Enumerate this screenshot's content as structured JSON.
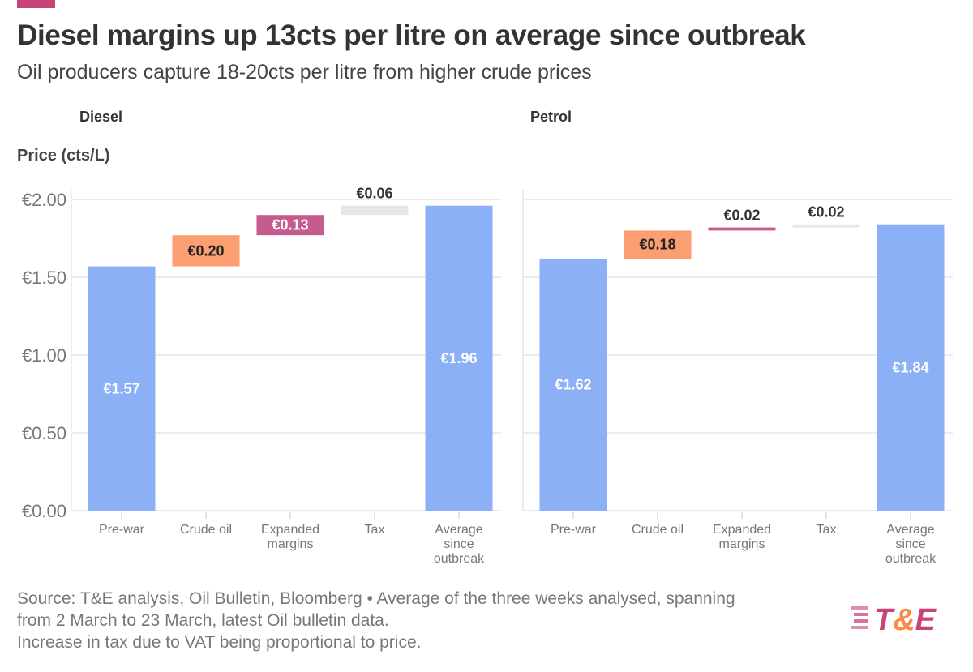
{
  "title": "Diesel margins up 13cts per litre on average since outbreak",
  "subtitle": "Oil producers capture 18-20cts per litre from higher crude prices",
  "ylabel": "Price (cts/L)",
  "source": [
    "Source: T&E analysis, Oil Bulletin, Bloomberg • Average of the three weeks analysed, spanning",
    "from 2 March to 23 March, latest Oil bulletin data.",
    "Increase in tax due to VAT being proportional to price."
  ],
  "logo_text": "T&E",
  "colors": {
    "total": "#8cb0f5",
    "crude": "#fb9f72",
    "margins": "#c65b8e",
    "tax": "#e6e6e6",
    "accent": "#c8437a"
  },
  "chart_data": [
    {
      "type": "waterfall",
      "title": "Diesel",
      "ylabel": "Price (cts/L)",
      "ylim": [
        0,
        2.0
      ],
      "yticks": [
        "€0.00",
        "€0.50",
        "€1.00",
        "€1.50",
        "€2.00"
      ],
      "ytick_values": [
        0,
        0.5,
        1.0,
        1.5,
        2.0
      ],
      "grid": true,
      "categories": [
        [
          "Pre-war"
        ],
        [
          "Crude oil"
        ],
        [
          "Expanded",
          "margins"
        ],
        [
          "Tax"
        ],
        [
          "Average",
          "since",
          "outbreak"
        ]
      ],
      "kinds": [
        "total",
        "crude",
        "margins",
        "tax",
        "total"
      ],
      "values": [
        1.57,
        0.2,
        0.13,
        0.06,
        1.96
      ],
      "labels": [
        "€1.57",
        "€0.20",
        "€0.13",
        "€0.06",
        "€1.96"
      ]
    },
    {
      "type": "waterfall",
      "title": "Petrol",
      "ylim": [
        0,
        2.0
      ],
      "ytick_values": [
        0,
        0.5,
        1.0,
        1.5,
        2.0
      ],
      "grid": true,
      "categories": [
        [
          "Pre-war"
        ],
        [
          "Crude oil"
        ],
        [
          "Expanded",
          "margins"
        ],
        [
          "Tax"
        ],
        [
          "Average",
          "since",
          "outbreak"
        ]
      ],
      "kinds": [
        "total",
        "crude",
        "margins",
        "tax",
        "total"
      ],
      "values": [
        1.62,
        0.18,
        0.02,
        0.02,
        1.84
      ],
      "labels": [
        "€1.62",
        "€0.18",
        "€0.02",
        "€0.02",
        "€1.84"
      ]
    }
  ]
}
